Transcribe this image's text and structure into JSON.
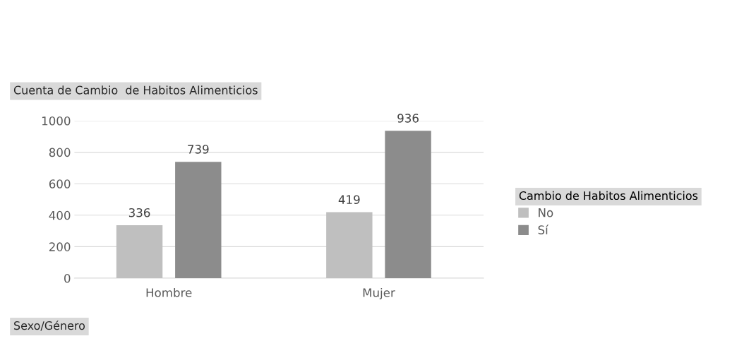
{
  "chart_data": {
    "type": "bar",
    "title": "Cuenta de Cambio  de Habitos Alimenticios",
    "xlabel": "Sexo/Género",
    "legend_title": "Cambio de Habitos Alimenticios",
    "categories": [
      "Hombre",
      "Mujer"
    ],
    "series": [
      {
        "name": "No",
        "color": "#bfbfbf",
        "values": [
          336,
          419
        ]
      },
      {
        "name": "Sí",
        "color": "#8c8c8c",
        "values": [
          739,
          936
        ]
      }
    ],
    "ylim": [
      0,
      1000
    ],
    "yticks": [
      0,
      200,
      400,
      600,
      800,
      1000
    ],
    "grid": "y",
    "legend": "right",
    "data_labels": true
  }
}
